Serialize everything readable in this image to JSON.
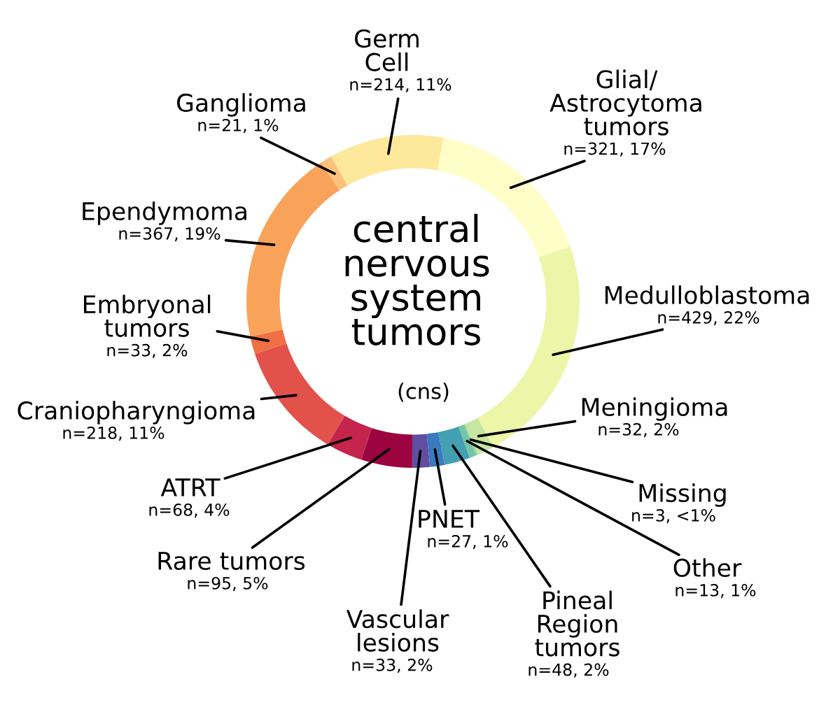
{
  "chart_data": {
    "type": "donut",
    "title": "central\nnervous\nsystem\ntumors",
    "subtitle": "(cns)",
    "categories": [
      "Germ\nCell",
      "Glial/\nAstrocytoma\ntumors",
      "Medulloblastoma",
      "Meningioma",
      "Missing",
      "Other",
      "Pineal\nRegion\ntumors",
      "PNET",
      "Vascular\nlesions",
      "Rare tumors",
      "ATRT",
      "Craniopharyngioma",
      "Embryonal\ntumors",
      "Ependymoma",
      "Ganglioma"
    ],
    "values": [
      214,
      321,
      429,
      32,
      3,
      13,
      48,
      27,
      33,
      95,
      68,
      218,
      33,
      367,
      21
    ],
    "value_labels": [
      "n=214, 11%",
      "n=321, 17%",
      "n=429, 22%",
      "n=32, 2%",
      "n=3, <1%",
      "n=13, 1%",
      "n=48, 2%",
      "n=27, 1%",
      "n=33, 2%",
      "n=95, 5%",
      "n=68, 4%",
      "n=218, 11%",
      "n=33, 2%",
      "n=367, 19%",
      "n=21, 1%"
    ],
    "colors": [
      "#fde89b",
      "#fffec8",
      "#ecf6a9",
      "#c7e6a0",
      "#99d5a4",
      "#72c6a7",
      "#449fb2",
      "#3a7bbf",
      "#5f4ea1",
      "#9b0440",
      "#c5244d",
      "#e2524a",
      "#f16f44",
      "#f9a35a",
      "#fcc27b"
    ]
  }
}
